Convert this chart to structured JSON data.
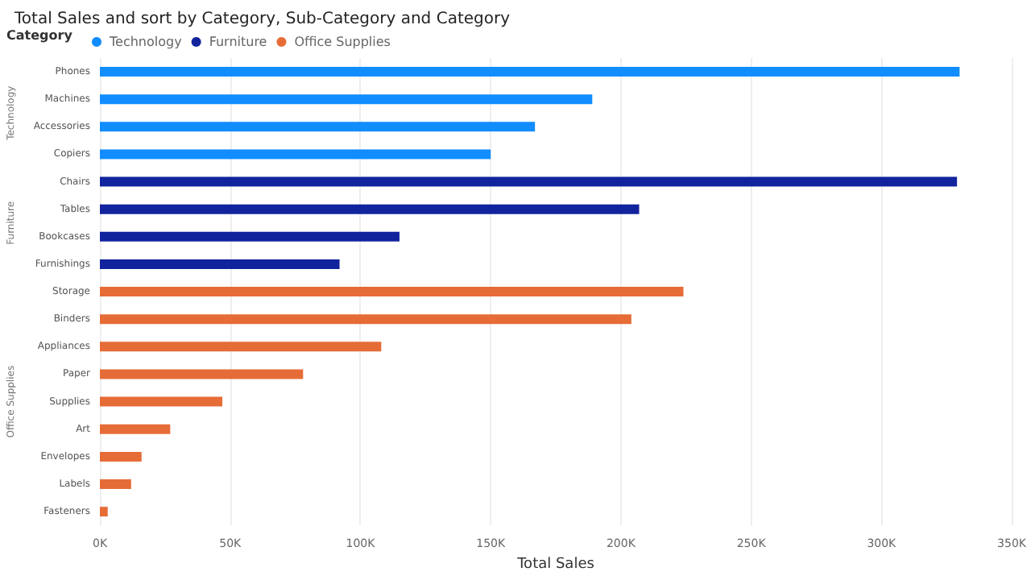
{
  "chart_data": {
    "type": "bar",
    "orientation": "horizontal",
    "title": "Total Sales and sort by Category, Sub-Category and Category",
    "legend_title": "Category",
    "xlabel": "Total Sales",
    "categories": [
      "Phones",
      "Machines",
      "Accessories",
      "Copiers",
      "Chairs",
      "Tables",
      "Bookcases",
      "Furnishings",
      "Storage",
      "Binders",
      "Appliances",
      "Paper",
      "Supplies",
      "Art",
      "Envelopes",
      "Labels",
      "Fasteners"
    ],
    "series": [
      {
        "name": "Technology",
        "color": "#118dff",
        "values": [
          330000,
          189000,
          167000,
          150000,
          null,
          null,
          null,
          null,
          null,
          null,
          null,
          null,
          null,
          null,
          null,
          null,
          null
        ]
      },
      {
        "name": "Furniture",
        "color": "#12239e",
        "values": [
          null,
          null,
          null,
          null,
          329000,
          207000,
          115000,
          92000,
          null,
          null,
          null,
          null,
          null,
          null,
          null,
          null,
          null
        ]
      },
      {
        "name": "Office Supplies",
        "color": "#e66c37",
        "values": [
          null,
          null,
          null,
          null,
          null,
          null,
          null,
          null,
          224000,
          204000,
          108000,
          78000,
          47000,
          27000,
          16000,
          12000,
          3000
        ]
      }
    ],
    "xlim": [
      0,
      350000
    ],
    "xticks": [
      {
        "value": 0,
        "label": "0K"
      },
      {
        "value": 50000,
        "label": "50K"
      },
      {
        "value": 100000,
        "label": "100K"
      },
      {
        "value": 150000,
        "label": "150K"
      },
      {
        "value": 200000,
        "label": "200K"
      },
      {
        "value": 250000,
        "label": "250K"
      },
      {
        "value": 300000,
        "label": "300K"
      },
      {
        "value": 350000,
        "label": "350K"
      }
    ],
    "grid": "x",
    "legend": "top left"
  }
}
